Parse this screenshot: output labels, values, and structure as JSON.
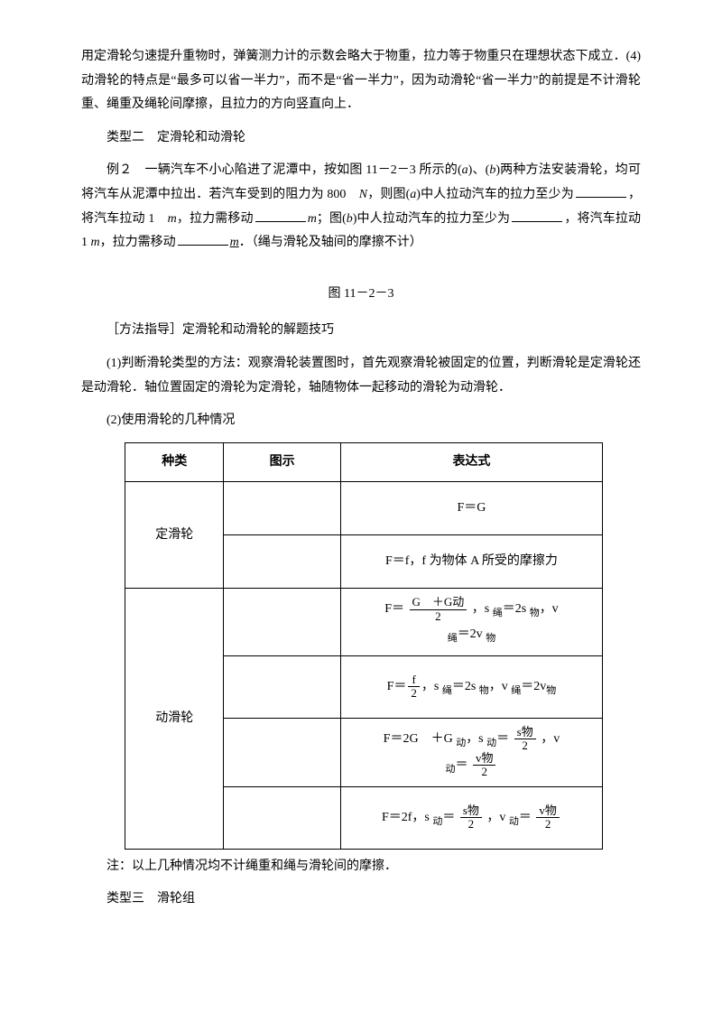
{
  "p1": "用定滑轮匀速提升重物时，弹簧测力计的示数会略大于物重，拉力等于物重只在理想状态下成立．(4)动滑轮的特点是“最多可以省一半力”，而不是“省一半力”，因为动滑轮“省一半力”的前提是不计滑轮重、绳重及绳轮间摩擦，且拉力的方向竖直向上．",
  "heading2": "类型二　定滑轮和动滑轮",
  "ex2_lead": "例２　一辆汽车不小心陷进了泥潭中，按如图 11－2－3 所示的(",
  "ex2_a": "a",
  "ex2_t1": ")、(",
  "ex2_b": "b",
  "ex2_t2": ")两种方法安装滑轮，均可将汽车从泥潭中拉出．若汽车受到的阻力为 800　",
  "ex2_n": "N",
  "ex2_t3": "，则图(",
  "ex2_t4": ")中人拉动汽车的拉力至少为",
  "ex2_t5": "，将汽车拉动 1　",
  "ex2_m": "m",
  "ex2_t6": "，拉力需移动",
  "ex2_mi": "m",
  "ex2_t7": "；图(",
  "ex2_t8": ")中人拉动汽车的拉力至少为",
  "ex2_t9": "，将汽车拉动 1 ",
  "ex2_t10": "，拉力需移动",
  "ex2_end": "．（绳与滑轮及轴间的摩擦不计）",
  "fig_caption": "图 11－2－3",
  "method_head": "［方法指导］定滑轮和动滑轮的解题技巧",
  "method_p1": "(1)判断滑轮类型的方法：观察滑轮装置图时，首先观察滑轮被固定的位置，判断滑轮是定滑轮还是动滑轮．轴位置固定的滑轮为定滑轮，轴随物体一起移动的滑轮为动滑轮．",
  "method_p2": "(2)使用滑轮的几种情况",
  "table": {
    "h_kind": "种类",
    "h_fig": "图示",
    "h_expr": "表达式",
    "kind_fixed": "定滑轮",
    "kind_moving": "动滑轮",
    "fixed_r1": "F＝G",
    "fixed_r2": "F＝f，f 为物体 A 所受的摩擦力",
    "mov_r1_pre": "F＝",
    "mov_r1_num": "G　＋G动",
    "mov_r1_den": "2",
    "mov_r1_post": "，s ",
    "mov_r1_rope": "绳",
    "mov_r1_eq": "＝2s ",
    "mov_r1_obj": "物",
    "mov_r1_v": "，v",
    "mov_r1_v2": "＝2v ",
    "mov_r2_pre": "F＝",
    "mov_r2_num": "f",
    "mov_r2_den": "2",
    "mov_r2_post": "，s ",
    "mov_r2_rope": "绳",
    "mov_r2_eq": "＝2s ",
    "mov_r2_obj": "物",
    "mov_r2_v": "，v ",
    "mov_r2_v2": "＝2v",
    "mov_r3_a": "F＝2G　＋G ",
    "mov_r3_dong": "动",
    "mov_r3_b": "，s ",
    "mov_r3_c": "＝",
    "mov_r3_num": "s物",
    "mov_r3_den": "2",
    "mov_r3_d": "，v",
    "mov_r3_num2": "v物",
    "mov_r3_den2": "2",
    "mov_r3_e": "＝",
    "mov_r4_a": "F＝2f，s ",
    "mov_r4_b": "＝",
    "mov_r4_num": "s物",
    "mov_r4_den": "2",
    "mov_r4_c": "，v ",
    "mov_r4_d": "＝",
    "mov_r4_num2": "v物",
    "mov_r4_den2": "2"
  },
  "note": "注：以上几种情况均不计绳重和绳与滑轮间的摩擦．",
  "heading3": "类型三　滑轮组"
}
